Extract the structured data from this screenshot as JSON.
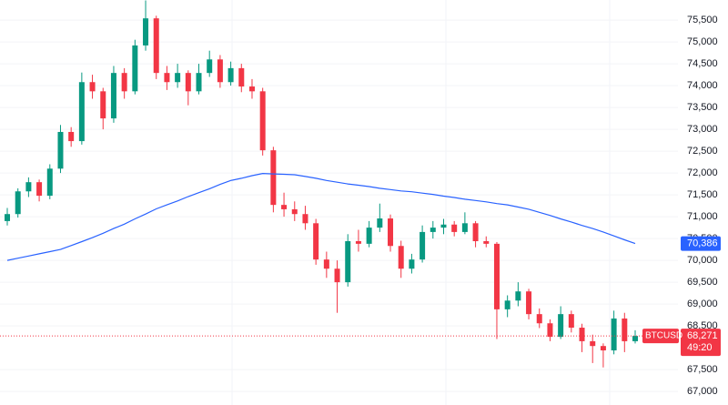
{
  "chart_data": {
    "type": "candlestick",
    "symbol": "BTCUSD",
    "countdown": "49:20",
    "up_color": "#089981",
    "down_color": "#f23645",
    "ylim": [
      66690,
      75960
    ],
    "yticks": [
      {
        "value": 75500,
        "label": "75,500"
      },
      {
        "value": 75000,
        "label": "75,000"
      },
      {
        "value": 74500,
        "label": "74,500"
      },
      {
        "value": 74000,
        "label": "74,000"
      },
      {
        "value": 73500,
        "label": "73,500"
      },
      {
        "value": 73000,
        "label": "73,000"
      },
      {
        "value": 72500,
        "label": "72,500"
      },
      {
        "value": 72000,
        "label": "72,000"
      },
      {
        "value": 71500,
        "label": "71,500"
      },
      {
        "value": 71000,
        "label": "71,000"
      },
      {
        "value": 70500,
        "label": "70,500"
      },
      {
        "value": 70000,
        "label": "70,000"
      },
      {
        "value": 69500,
        "label": "69,500"
      },
      {
        "value": 69000,
        "label": "69,000"
      },
      {
        "value": 68500,
        "label": "68,500"
      },
      {
        "value": 67500,
        "label": "67,500"
      },
      {
        "value": 67000,
        "label": "67,000"
      }
    ],
    "ohlc": [
      [
        70900,
        71200,
        70800,
        71060
      ],
      [
        71060,
        71650,
        70980,
        71580
      ],
      [
        71580,
        71900,
        71450,
        71790
      ],
      [
        71790,
        71850,
        71350,
        71480
      ],
      [
        71480,
        72200,
        71400,
        72100
      ],
      [
        72100,
        73100,
        72000,
        72940
      ],
      [
        72940,
        73050,
        72600,
        72730
      ],
      [
        72730,
        74300,
        72650,
        74080
      ],
      [
        74080,
        74250,
        73700,
        73870
      ],
      [
        73870,
        73950,
        73000,
        73250
      ],
      [
        73250,
        74450,
        73150,
        74290
      ],
      [
        74290,
        74400,
        73700,
        73870
      ],
      [
        73870,
        75050,
        73800,
        74920
      ],
      [
        74920,
        75950,
        74800,
        75540
      ],
      [
        75540,
        75600,
        74150,
        74290
      ],
      [
        74290,
        74450,
        73900,
        74080
      ],
      [
        74080,
        74500,
        73950,
        74290
      ],
      [
        74290,
        74350,
        73550,
        73870
      ],
      [
        73870,
        74500,
        73800,
        74290
      ],
      [
        74290,
        74800,
        74200,
        74600
      ],
      [
        74600,
        74700,
        73950,
        74080
      ],
      [
        74080,
        74550,
        74000,
        74400
      ],
      [
        74400,
        74500,
        73850,
        73980
      ],
      [
        73980,
        74150,
        73700,
        73870
      ],
      [
        73870,
        73950,
        72400,
        72520
      ],
      [
        72520,
        72600,
        71100,
        71270
      ],
      [
        71270,
        71550,
        71000,
        71170
      ],
      [
        71170,
        71350,
        70900,
        71060
      ],
      [
        71060,
        71250,
        70700,
        70850
      ],
      [
        70850,
        70950,
        69900,
        70020
      ],
      [
        70020,
        70200,
        69600,
        69810
      ],
      [
        69810,
        70000,
        68800,
        69500
      ],
      [
        69500,
        70600,
        69400,
        70440
      ],
      [
        70440,
        70700,
        70200,
        70380
      ],
      [
        70380,
        70900,
        70300,
        70750
      ],
      [
        70750,
        71300,
        70650,
        70960
      ],
      [
        70960,
        71050,
        70200,
        70330
      ],
      [
        70330,
        70450,
        69600,
        69810
      ],
      [
        69810,
        70150,
        69700,
        70020
      ],
      [
        70020,
        70800,
        69950,
        70650
      ],
      [
        70650,
        70900,
        70500,
        70750
      ],
      [
        70750,
        70950,
        70600,
        70820
      ],
      [
        70820,
        70900,
        70550,
        70650
      ],
      [
        70650,
        71100,
        70600,
        70850
      ],
      [
        70850,
        70900,
        70300,
        70440
      ],
      [
        70440,
        70550,
        70300,
        70380
      ],
      [
        70380,
        70420,
        68200,
        68880
      ],
      [
        68880,
        69200,
        68700,
        69080
      ],
      [
        69080,
        69500,
        68950,
        69290
      ],
      [
        69290,
        69350,
        68650,
        68770
      ],
      [
        68770,
        68900,
        68450,
        68560
      ],
      [
        68560,
        68650,
        68150,
        68250
      ],
      [
        68250,
        68950,
        68200,
        68770
      ],
      [
        68770,
        68850,
        68350,
        68460
      ],
      [
        68460,
        68550,
        67900,
        68150
      ],
      [
        68150,
        68300,
        67650,
        68040
      ],
      [
        68040,
        68100,
        67550,
        67940
      ],
      [
        67940,
        68850,
        67850,
        68670
      ],
      [
        68670,
        68800,
        67900,
        68150
      ],
      [
        68150,
        68400,
        68100,
        68271
      ]
    ],
    "moving_average": {
      "color": "#2962ff",
      "values": [
        70000,
        70050,
        70100,
        70150,
        70200,
        70250,
        70340,
        70430,
        70520,
        70620,
        70730,
        70830,
        70950,
        71060,
        71180,
        71270,
        71360,
        71460,
        71550,
        71640,
        71740,
        71830,
        71880,
        71940,
        71990,
        71980,
        71970,
        71960,
        71920,
        71880,
        71830,
        71790,
        71750,
        71720,
        71690,
        71650,
        71620,
        71590,
        71570,
        71540,
        71510,
        71470,
        71440,
        71400,
        71370,
        71340,
        71300,
        71270,
        71220,
        71170,
        71100,
        71030,
        70950,
        70880,
        70800,
        70730,
        70650,
        70560,
        70470,
        70386
      ],
      "last_label": {
        "value": 70386,
        "label": "70,386"
      }
    },
    "last_price": {
      "value": 68271,
      "label": "68,271"
    }
  }
}
